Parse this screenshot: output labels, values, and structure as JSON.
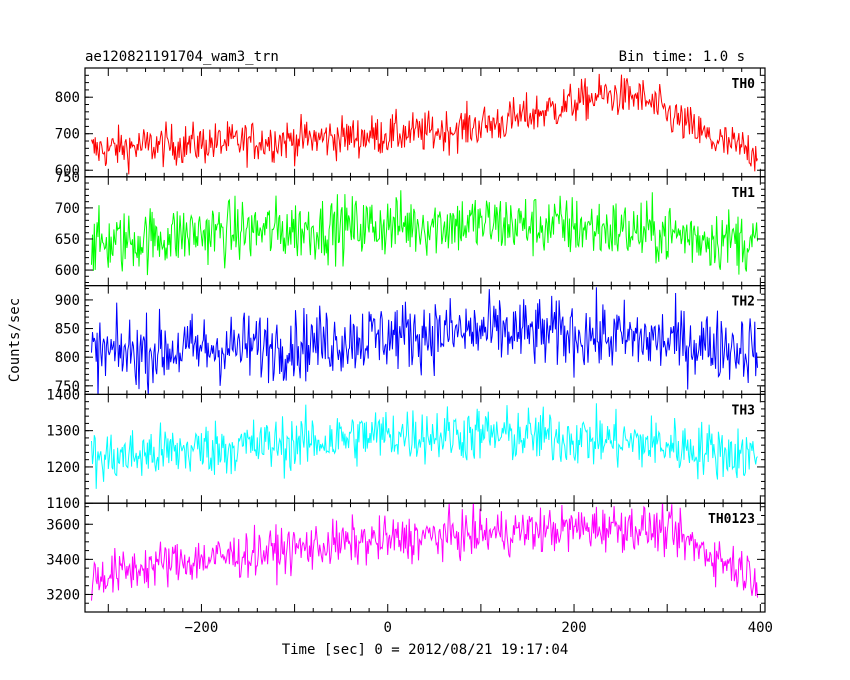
{
  "chart_data": {
    "type": "line",
    "title": "ae120821191704_wam3_trn",
    "subtitle": "Bin time: 1.0 s",
    "xlabel": "Time [sec] 0 = 2012/08/21 19:17:04",
    "ylabel": "Counts/sec",
    "xlim": [
      -325,
      405
    ],
    "xticks": [
      -200,
      0,
      200,
      400
    ],
    "xtick_labels": [
      "−200",
      "0",
      "200",
      "400"
    ],
    "sample_x_range": [
      -318,
      397
    ],
    "bin_time_s": 1.0,
    "grid": false,
    "panels": [
      {
        "name": "TH0",
        "color": "#ff0000",
        "ylim": [
          582,
          880
        ],
        "yticks": [
          600,
          700,
          800
        ],
        "ytick_labels": [
          "600",
          "700",
          "800"
        ],
        "trend": [
          [
            -318,
            655
          ],
          [
            -250,
            668
          ],
          [
            -150,
            678
          ],
          [
            -50,
            690
          ],
          [
            50,
            705
          ],
          [
            120,
            730
          ],
          [
            180,
            770
          ],
          [
            230,
            805
          ],
          [
            270,
            800
          ],
          [
            310,
            740
          ],
          [
            350,
            680
          ],
          [
            397,
            650
          ]
        ],
        "noise": 28
      },
      {
        "name": "TH1",
        "color": "#00ff00",
        "ylim": [
          575,
          750
        ],
        "yticks": [
          600,
          650,
          700,
          750
        ],
        "ytick_labels": [
          "600",
          "650",
          "700",
          "750"
        ],
        "trend": [
          [
            -318,
            640
          ],
          [
            -200,
            660
          ],
          [
            -100,
            665
          ],
          [
            0,
            672
          ],
          [
            100,
            675
          ],
          [
            200,
            670
          ],
          [
            300,
            658
          ],
          [
            397,
            645
          ]
        ],
        "noise": 25
      },
      {
        "name": "TH2",
        "color": "#0000ff",
        "ylim": [
          735,
          925
        ],
        "yticks": [
          750,
          800,
          850,
          900
        ],
        "ytick_labels": [
          "750",
          "800",
          "850",
          "900"
        ],
        "trend": [
          [
            -318,
            805
          ],
          [
            -200,
            815
          ],
          [
            -100,
            822
          ],
          [
            0,
            838
          ],
          [
            100,
            845
          ],
          [
            200,
            840
          ],
          [
            300,
            828
          ],
          [
            397,
            815
          ]
        ],
        "noise": 30
      },
      {
        "name": "TH3",
        "color": "#00ffff",
        "ylim": [
          1100,
          1400
        ],
        "yticks": [
          1100,
          1200,
          1300,
          1400
        ],
        "ytick_labels": [
          "1100",
          "1200",
          "1300",
          "1400"
        ],
        "trend": [
          [
            -318,
            1220
          ],
          [
            -200,
            1250
          ],
          [
            -100,
            1265
          ],
          [
            0,
            1290
          ],
          [
            100,
            1290
          ],
          [
            200,
            1280
          ],
          [
            300,
            1260
          ],
          [
            397,
            1230
          ]
        ],
        "noise": 38
      },
      {
        "name": "TH0123",
        "color": "#ff00ff",
        "ylim": [
          3100,
          3720
        ],
        "yticks": [
          3200,
          3400,
          3600
        ],
        "ytick_labels": [
          "3200",
          "3400",
          "3600"
        ],
        "trend": [
          [
            -318,
            3290
          ],
          [
            -250,
            3370
          ],
          [
            -150,
            3430
          ],
          [
            -50,
            3490
          ],
          [
            50,
            3530
          ],
          [
            150,
            3560
          ],
          [
            250,
            3590
          ],
          [
            300,
            3560
          ],
          [
            350,
            3420
          ],
          [
            397,
            3300
          ]
        ],
        "noise": 65
      }
    ]
  }
}
